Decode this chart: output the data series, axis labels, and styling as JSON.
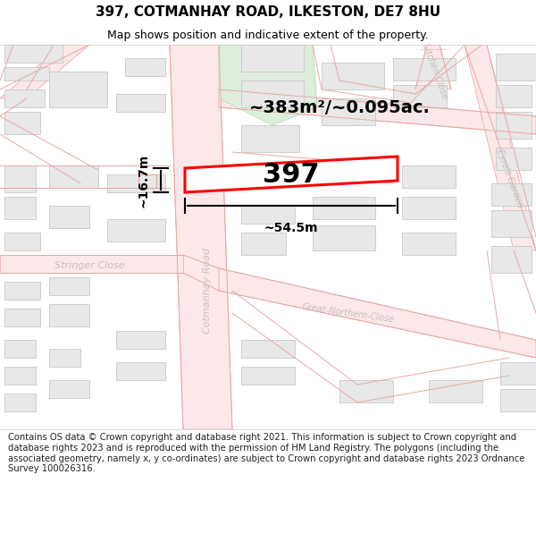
{
  "title": "397, COTMANHAY ROAD, ILKESTON, DE7 8HU",
  "subtitle": "Map shows position and indicative extent of the property.",
  "footer": "Contains OS data © Crown copyright and database right 2021. This information is subject to Crown copyright and database rights 2023 and is reproduced with the permission of HM Land Registry. The polygons (including the associated geometry, namely x, y co-ordinates) are subject to Crown copyright and database rights 2023 Ordnance Survey 100026316.",
  "area_label": "~383m²/~0.095ac.",
  "width_label": "~54.5m",
  "height_label": "~16.7m",
  "plot_number": "397",
  "highlight_stroke": "#ff0000",
  "highlight_lw": 2.2,
  "road_fill": "#fce8e8",
  "road_edge": "#e8a0a0",
  "building_fill": "#e8e8e8",
  "building_stroke": "#c8c8c8",
  "green_fill": "#ddeedd",
  "green_stroke": "#b8d8b8",
  "map_bg": "#ffffff",
  "street_color": "#c8c0c0",
  "title_fontsize": 11,
  "subtitle_fontsize": 9,
  "footer_fontsize": 7.2,
  "area_fontsize": 14,
  "plot_num_fontsize": 22,
  "dim_fontsize": 10,
  "street_fontsize": 8
}
